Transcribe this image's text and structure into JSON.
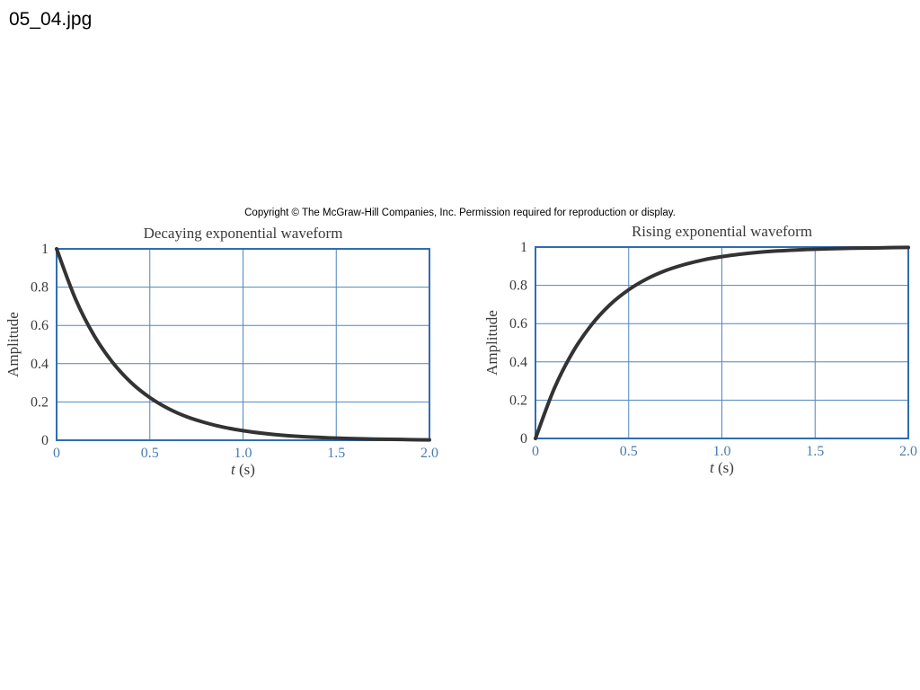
{
  "file_label": "05_04.jpg",
  "copyright": "Copyright © The McGraw-Hill Companies, Inc. Permission required for reproduction or display.",
  "colors": {
    "axis": "#2f6db3",
    "grid": "#4f86c0",
    "curve": "#333333",
    "x_tick_text": "#4a7cb0"
  },
  "chart_data": [
    {
      "type": "line",
      "title": "Decaying exponential waveform",
      "xlabel_var": "t",
      "xlabel_unit": " (s)",
      "ylabel": "Amplitude",
      "xlim": [
        0,
        2.0
      ],
      "ylim": [
        0,
        1
      ],
      "xticks": [
        "0",
        "0.5",
        "1.0",
        "1.5",
        "2.0"
      ],
      "yticks": [
        "0",
        "0.2",
        "0.4",
        "0.6",
        "0.8",
        "1"
      ],
      "grid": true,
      "x": [
        0,
        0.1,
        0.2,
        0.3,
        0.4,
        0.5,
        0.6,
        0.7,
        0.8,
        0.9,
        1.0,
        1.1,
        1.2,
        1.3,
        1.4,
        1.5,
        1.6,
        1.7,
        1.8,
        1.9,
        2.0
      ],
      "y": [
        1.0,
        0.741,
        0.549,
        0.407,
        0.301,
        0.223,
        0.165,
        0.122,
        0.091,
        0.067,
        0.05,
        0.037,
        0.027,
        0.02,
        0.015,
        0.011,
        0.008,
        0.006,
        0.005,
        0.003,
        0.002
      ]
    },
    {
      "type": "line",
      "title": "Rising exponential waveform",
      "xlabel_var": "t",
      "xlabel_unit": " (s)",
      "ylabel": "Amplitude",
      "xlim": [
        0,
        2.0
      ],
      "ylim": [
        0,
        1
      ],
      "xticks": [
        "0",
        "0.5",
        "1.0",
        "1.5",
        "2.0"
      ],
      "yticks": [
        "0",
        "0.2",
        "0.4",
        "0.6",
        "0.8",
        "1"
      ],
      "grid": true,
      "x": [
        0,
        0.1,
        0.2,
        0.3,
        0.4,
        0.5,
        0.6,
        0.7,
        0.8,
        0.9,
        1.0,
        1.1,
        1.2,
        1.3,
        1.4,
        1.5,
        1.6,
        1.7,
        1.8,
        1.9,
        2.0
      ],
      "y": [
        0.0,
        0.259,
        0.451,
        0.593,
        0.699,
        0.777,
        0.835,
        0.878,
        0.909,
        0.933,
        0.95,
        0.963,
        0.973,
        0.98,
        0.985,
        0.989,
        0.992,
        0.994,
        0.995,
        0.997,
        0.998
      ]
    }
  ]
}
